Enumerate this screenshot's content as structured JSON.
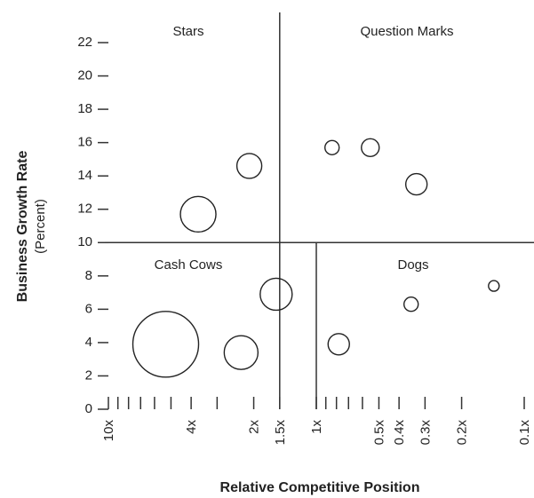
{
  "chart_data": {
    "type": "bubble",
    "ylabel": "Business Growth Rate",
    "ylabel_sub": "(Percent)",
    "xlabel": "Relative Competitive Position",
    "xscale": "log",
    "xlim": [
      10,
      0.1
    ],
    "xticks": [
      {
        "value": 10,
        "label": "10x"
      },
      {
        "value": 4,
        "label": "4x"
      },
      {
        "value": 2,
        "label": "2x"
      },
      {
        "value": 1.5,
        "label": "1.5x"
      },
      {
        "value": 1,
        "label": "1x"
      },
      {
        "value": 0.5,
        "label": "0.5x"
      },
      {
        "value": 0.4,
        "label": "0.4x"
      },
      {
        "value": 0.3,
        "label": "0.3x"
      },
      {
        "value": 0.2,
        "label": "0.2x"
      },
      {
        "value": 0.1,
        "label": "0.1x"
      }
    ],
    "xminorticks": [
      9,
      8,
      7,
      6,
      5,
      3,
      0.9,
      0.8,
      0.7,
      0.6
    ],
    "ylim": [
      0,
      22
    ],
    "yticks": [
      0,
      2,
      4,
      6,
      8,
      10,
      12,
      14,
      16,
      18,
      20,
      22
    ],
    "dividers": {
      "growth": 10,
      "share": 1.5,
      "low_share": 1
    },
    "quadrants": [
      "Stars",
      "Question Marks",
      "Cash Cows",
      "Dogs"
    ],
    "x": [
      3.7,
      2.1,
      0.84,
      0.55,
      0.33,
      5.3,
      2.3,
      1.56,
      0.78,
      0.35,
      0.14
    ],
    "values": [
      11.7,
      14.6,
      15.7,
      15.7,
      13.5,
      3.9,
      3.4,
      6.9,
      3.9,
      6.3,
      7.4
    ],
    "sizes": [
      20,
      14,
      8,
      10,
      12,
      37,
      19,
      18,
      12,
      8,
      6
    ]
  }
}
